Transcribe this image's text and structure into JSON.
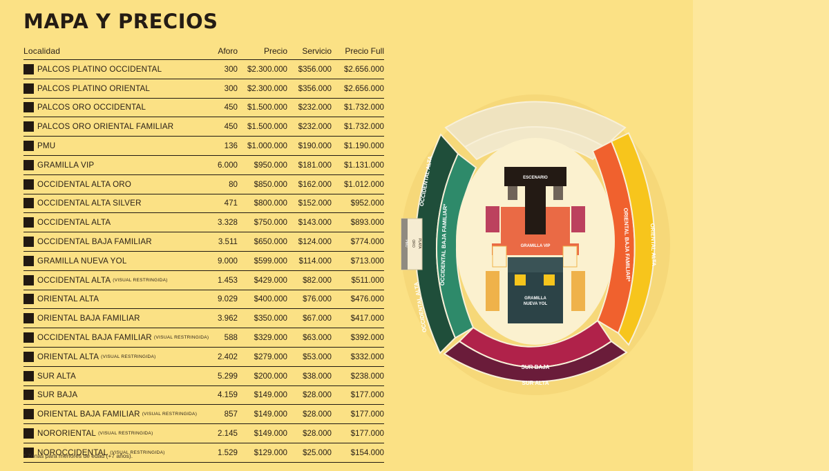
{
  "title": "MAPA Y PRECIOS",
  "table": {
    "headers": {
      "localidad": "Localidad",
      "aforo": "Aforo",
      "precio": "Precio",
      "servicio": "Servicio",
      "precio_full": "Precio Full"
    },
    "rows": [
      {
        "name": "PALCOS PLATINO OCCIDENTAL",
        "note": "",
        "aforo": "300",
        "precio": "$2.300.000",
        "servicio": "$356.000",
        "full": "$2.656.000"
      },
      {
        "name": "PALCOS PLATINO ORIENTAL",
        "note": "",
        "aforo": "300",
        "precio": "$2.300.000",
        "servicio": "$356.000",
        "full": "$2.656.000"
      },
      {
        "name": "PALCOS ORO OCCIDENTAL",
        "note": "",
        "aforo": "450",
        "precio": "$1.500.000",
        "servicio": "$232.000",
        "full": "$1.732.000"
      },
      {
        "name": "PALCOS ORO ORIENTAL FAMILIAR",
        "note": "",
        "aforo": "450",
        "precio": "$1.500.000",
        "servicio": "$232.000",
        "full": "$1.732.000"
      },
      {
        "name": "PMU",
        "note": "",
        "aforo": "136",
        "precio": "$1.000.000",
        "servicio": "$190.000",
        "full": "$1.190.000"
      },
      {
        "name": "GRAMILLA VIP",
        "note": "",
        "aforo": "6.000",
        "precio": "$950.000",
        "servicio": "$181.000",
        "full": "$1.131.000"
      },
      {
        "name": "OCCIDENTAL ALTA ORO",
        "note": "",
        "aforo": "80",
        "precio": "$850.000",
        "servicio": "$162.000",
        "full": "$1.012.000"
      },
      {
        "name": "OCCIDENTAL ALTA SILVER",
        "note": "",
        "aforo": "471",
        "precio": "$800.000",
        "servicio": "$152.000",
        "full": "$952.000"
      },
      {
        "name": "OCCIDENTAL ALTA",
        "note": "",
        "aforo": "3.328",
        "precio": "$750.000",
        "servicio": "$143.000",
        "full": "$893.000"
      },
      {
        "name": "OCCIDENTAL BAJA FAMILIAR",
        "note": "",
        "aforo": "3.511",
        "precio": "$650.000",
        "servicio": "$124.000",
        "full": "$774.000"
      },
      {
        "name": "GRAMILLA NUEVA YOL",
        "note": "",
        "aforo": "9.000",
        "precio": "$599.000",
        "servicio": "$114.000",
        "full": "$713.000"
      },
      {
        "name": "OCCIDENTAL ALTA",
        "note": "(VISUAL RESTRINGIDA)",
        "aforo": "1.453",
        "precio": "$429.000",
        "servicio": "$82.000",
        "full": "$511.000"
      },
      {
        "name": "ORIENTAL ALTA",
        "note": "",
        "aforo": "9.029",
        "precio": "$400.000",
        "servicio": "$76.000",
        "full": "$476.000"
      },
      {
        "name": "ORIENTAL BAJA FAMILIAR",
        "note": "",
        "aforo": "3.962",
        "precio": "$350.000",
        "servicio": "$67.000",
        "full": "$417.000"
      },
      {
        "name": "OCCIDENTAL BAJA FAMILIAR",
        "note": "(VISUAL RESTRINGIDA)",
        "aforo": "588",
        "precio": "$329.000",
        "servicio": "$63.000",
        "full": "$392.000"
      },
      {
        "name": "ORIENTAL ALTA",
        "note": "(VISUAL RESTRINGIDA)",
        "aforo": "2.402",
        "precio": "$279.000",
        "servicio": "$53.000",
        "full": "$332.000"
      },
      {
        "name": "SUR ALTA",
        "note": "",
        "aforo": "5.299",
        "precio": "$200.000",
        "servicio": "$38.000",
        "full": "$238.000"
      },
      {
        "name": "SUR BAJA",
        "note": "",
        "aforo": "4.159",
        "precio": "$149.000",
        "servicio": "$28.000",
        "full": "$177.000"
      },
      {
        "name": "ORIENTAL BAJA FAMILIAR",
        "note": "(VISUAL RESTRINGIDA)",
        "aforo": "857",
        "precio": "$149.000",
        "servicio": "$28.000",
        "full": "$177.000"
      },
      {
        "name": "NORORIENTAL",
        "note": "(VISUAL RESTRINGIDA)",
        "aforo": "2.145",
        "precio": "$149.000",
        "servicio": "$28.000",
        "full": "$177.000"
      },
      {
        "name": "NOROCCIDENTAL",
        "note": "(VISUAL RESTRINGIDA)",
        "aforo": "1.529",
        "precio": "$129.000",
        "servicio": "$25.000",
        "full": "$154.000"
      }
    ]
  },
  "footnote": "* Zonas para menores de edad (+7 años).",
  "map": {
    "occidental_alta": "OCCIDENTAL ALTA",
    "occidental_alta_2": "OCCIDENTAL ALTA",
    "occidental_baja_familiar": "OCCIDENTAL BAJA FAMILIAR*",
    "oriental_baja_familiar": "ORIENTAL BAJA FAMILIAR*",
    "oriental_alta": "ORIENTAL ALTA",
    "sur_baja": "SUR BAJA",
    "sur_alta": "SUR ALTA",
    "escenario": "ESCENARIO",
    "gramilla_vip": "GRAMILLA VIP",
    "gramilla_nueva_yol_1": "GRAMILLA",
    "gramilla_nueva_yol_2": "NUEVA YOL",
    "pmu": "PMU",
    "oro": "ORO",
    "plata": "PLATA",
    "colors": {
      "background": "#fbe185",
      "occidental_alta": "#1f4e3a",
      "occidental_baja": "#2e8a6a",
      "oriental_baja": "#f0612e",
      "oriental_alta": "#f7c51c",
      "sur_baja": "#b0224a",
      "sur_alta": "#6a1c3a",
      "norte": "#efe3bf",
      "field": "#fbf1cf",
      "stage": "#231a14",
      "vip": "#ea6a45",
      "nueva_yol": "#2c4347"
    }
  }
}
